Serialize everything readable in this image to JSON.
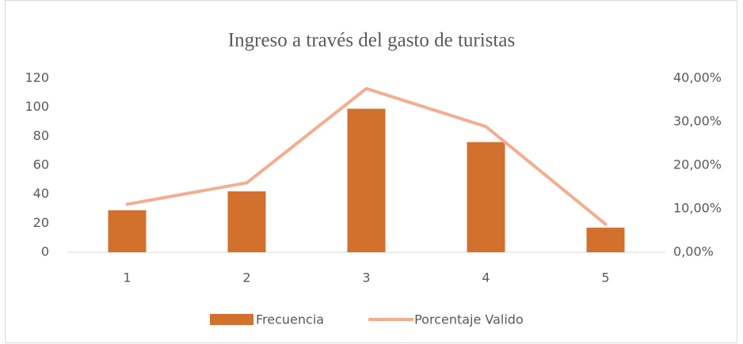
{
  "chart_data": {
    "type": "bar",
    "title": "Ingreso a través del gasto de turistas",
    "categories": [
      "1",
      "2",
      "3",
      "4",
      "5"
    ],
    "series": [
      {
        "name": "Frecuencia",
        "color": "#d2702e",
        "type": "bar",
        "values": [
          29,
          42,
          99,
          76,
          17
        ]
      },
      {
        "name": "Porcentaje Valido",
        "color": "#f4ad90",
        "type": "line",
        "axis": "y2",
        "values": [
          11.03,
          15.97,
          37.64,
          28.9,
          6.46
        ]
      }
    ],
    "ylim": [
      0,
      120
    ],
    "yticks": [
      0,
      20,
      40,
      60,
      80,
      100,
      120
    ],
    "y2lim": [
      0,
      40
    ],
    "y2ticks": [
      {
        "value": 0,
        "label": "0,00%"
      },
      {
        "value": 10,
        "label": "10,00%"
      },
      {
        "value": 20,
        "label": "20,00%"
      },
      {
        "value": 30,
        "label": "30,00%"
      },
      {
        "value": 40,
        "label": "40,00%"
      }
    ],
    "grid": false,
    "legend": "bottom"
  }
}
